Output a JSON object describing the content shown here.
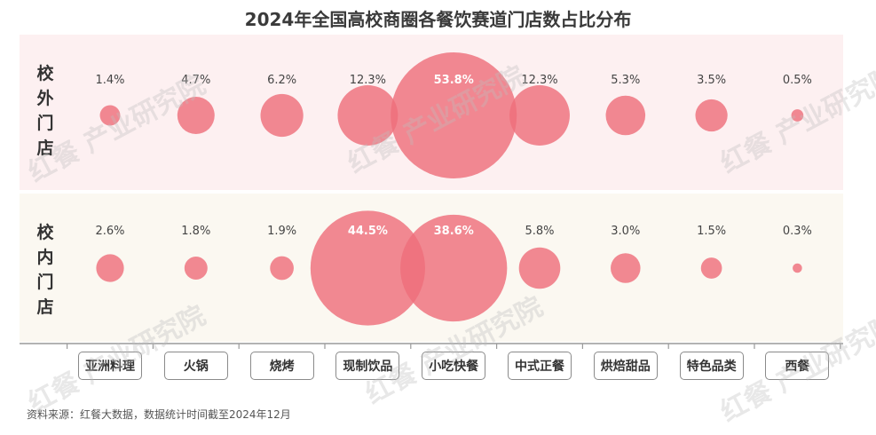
{
  "title": "2024年全国高校商圈各餐饮赛道门店数占比分布",
  "source": "资料来源：红餐大数据，数据统计时间截至2024年12月",
  "colors": {
    "bubble": "#ee6f7b",
    "row_outside_bg": "#fdf0f1",
    "row_inside_bg": "#fbf8f1",
    "label_light": "#ffffff",
    "label_dark": "#444444"
  },
  "chart_data": {
    "type": "bubble",
    "title": "2024年全国高校商圈各餐饮赛道门店数占比分布",
    "categories": [
      "亚洲料理",
      "火锅",
      "烧烤",
      "现制饮品",
      "小吃快餐",
      "中式正餐",
      "烘焙甜品",
      "特色品类",
      "西餐"
    ],
    "unit": "%",
    "series": [
      {
        "name": "校外门店",
        "values": [
          1.4,
          4.7,
          6.2,
          12.3,
          53.8,
          12.3,
          5.3,
          3.5,
          0.5
        ],
        "labels": [
          "1.4%",
          "4.7%",
          "6.2%",
          "12.3%",
          "53.8%",
          "12.3%",
          "5.3%",
          "3.5%",
          "0.5%"
        ]
      },
      {
        "name": "校内门店",
        "values": [
          2.6,
          1.8,
          1.9,
          44.5,
          38.6,
          5.8,
          3.0,
          1.5,
          0.3
        ],
        "labels": [
          "2.6%",
          "1.8%",
          "1.9%",
          "44.5%",
          "38.6%",
          "5.8%",
          "3.0%",
          "1.5%",
          "0.3%"
        ]
      }
    ]
  },
  "watermark_text": "红餐 产业研究院"
}
